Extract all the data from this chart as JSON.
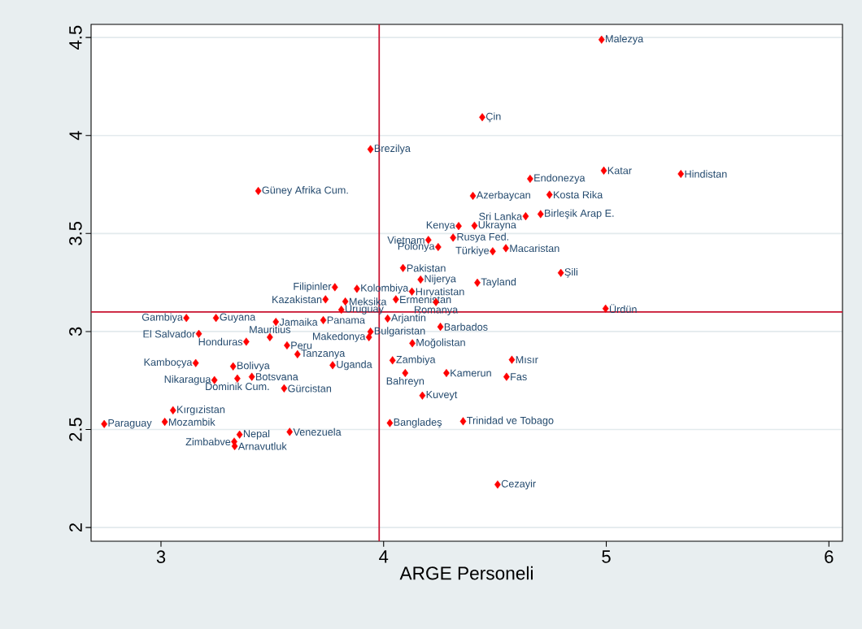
{
  "chart_data": {
    "type": "scatter",
    "xlabel": "ARGE Personeli",
    "xlim": [
      2.686,
      6.061
    ],
    "ylim": [
      1.93,
      4.567
    ],
    "xticks": [
      3,
      4,
      5,
      6
    ],
    "yticks": [
      2,
      2.5,
      3,
      3.5,
      4,
      4.5
    ],
    "grid": "y",
    "marker": "diamond",
    "ref_lines": [
      {
        "axis": "x",
        "value": 3.98,
        "color": "#c8102e"
      },
      {
        "axis": "y",
        "value": 3.1,
        "color": "#c8102e"
      }
    ],
    "series": [
      {
        "color": "#ff0000",
        "x": [
          4.979,
          4.443,
          3.941,
          4.989,
          5.335,
          4.658,
          3.437,
          4.401,
          4.745,
          4.638,
          4.705,
          4.337,
          4.408,
          4.201,
          4.312,
          4.245,
          4.49,
          4.549,
          4.087,
          4.796,
          4.166,
          4.421,
          3.781,
          3.88,
          4.127,
          3.739,
          3.828,
          4.055,
          4.235,
          3.81,
          4.997,
          3.114,
          3.247,
          4.018,
          3.516,
          3.729,
          4.255,
          3.941,
          3.934,
          3.17,
          3.489,
          3.383,
          3.566,
          4.129,
          3.613,
          4.04,
          4.576,
          3.156,
          3.324,
          3.771,
          4.097,
          4.282,
          4.552,
          3.24,
          3.343,
          3.408,
          3.553,
          4.174,
          3.054,
          2.745,
          3.017,
          4.028,
          4.357,
          3.353,
          3.578,
          3.329,
          3.331,
          4.512
        ],
        "values": [
          4.489,
          4.093,
          3.93,
          3.821,
          3.804,
          3.779,
          3.717,
          3.692,
          3.698,
          3.588,
          3.599,
          3.538,
          3.54,
          3.467,
          3.479,
          3.431,
          3.409,
          3.425,
          3.324,
          3.299,
          3.265,
          3.249,
          3.226,
          3.218,
          3.204,
          3.164,
          3.153,
          3.164,
          3.15,
          3.111,
          3.117,
          3.069,
          3.069,
          3.066,
          3.049,
          3.058,
          3.024,
          2.999,
          2.971,
          2.988,
          2.971,
          2.948,
          2.929,
          2.94,
          2.884,
          2.853,
          2.856,
          2.839,
          2.822,
          2.828,
          2.788,
          2.788,
          2.769,
          2.752,
          2.76,
          2.769,
          2.71,
          2.673,
          2.598,
          2.528,
          2.539,
          2.533,
          2.542,
          2.474,
          2.488,
          2.438,
          2.415,
          2.219
        ]
      }
    ],
    "annotations": [
      {
        "text": "Malezya",
        "x": 4.979,
        "y": 4.489
      },
      {
        "text": "Çin",
        "x": 4.443,
        "y": 4.093
      },
      {
        "text": "Brezilya",
        "x": 3.941,
        "y": 3.93
      },
      {
        "text": "Katar",
        "x": 4.989,
        "y": 3.821
      },
      {
        "text": "Hindistan",
        "x": 5.335,
        "y": 3.804
      },
      {
        "text": "Endonezya",
        "x": 4.658,
        "y": 3.779
      },
      {
        "text": "Güney Afrika Cum.",
        "x": 3.437,
        "y": 3.717
      },
      {
        "text": "Azerbaycan",
        "x": 4.401,
        "y": 3.692
      },
      {
        "text": "Kosta Rika",
        "x": 4.745,
        "y": 3.698
      },
      {
        "text": "Sri Lanka",
        "x": 4.638,
        "y": 3.588
      },
      {
        "text": "Birleşik Arap E.",
        "x": 4.705,
        "y": 3.599
      },
      {
        "text": "Kenya",
        "x": 4.337,
        "y": 3.538
      },
      {
        "text": "Ukrayna",
        "x": 4.408,
        "y": 3.54
      },
      {
        "text": "Vietnam",
        "x": 4.201,
        "y": 3.467
      },
      {
        "text": "Rusya Fed.",
        "x": 4.312,
        "y": 3.479
      },
      {
        "text": "Polonya",
        "x": 4.245,
        "y": 3.431
      },
      {
        "text": "Türkiye",
        "x": 4.49,
        "y": 3.409
      },
      {
        "text": "Macaristan",
        "x": 4.549,
        "y": 3.425
      },
      {
        "text": "Pakistan",
        "x": 4.087,
        "y": 3.324
      },
      {
        "text": "Şili",
        "x": 4.796,
        "y": 3.299
      },
      {
        "text": "Nijerya",
        "x": 4.166,
        "y": 3.265
      },
      {
        "text": "Tayland",
        "x": 4.421,
        "y": 3.249
      },
      {
        "text": "Filipinler",
        "x": 3.781,
        "y": 3.226
      },
      {
        "text": "Kolombiya",
        "x": 3.88,
        "y": 3.218
      },
      {
        "text": "Hırvatistan",
        "x": 4.127,
        "y": 3.204
      },
      {
        "text": "Kazakistan",
        "x": 3.739,
        "y": 3.164
      },
      {
        "text": "Meksika",
        "x": 3.828,
        "y": 3.153
      },
      {
        "text": "Ermenistan",
        "x": 4.055,
        "y": 3.164
      },
      {
        "text": "Romanya",
        "x": 4.235,
        "y": 3.15
      },
      {
        "text": "Uruguay",
        "x": 3.81,
        "y": 3.111
      },
      {
        "text": "Ürdün",
        "x": 4.997,
        "y": 3.117
      },
      {
        "text": "Gambiya",
        "x": 3.114,
        "y": 3.069
      },
      {
        "text": "Guyana",
        "x": 3.247,
        "y": 3.069
      },
      {
        "text": "Arjantin",
        "x": 4.018,
        "y": 3.066
      },
      {
        "text": "Jamaika",
        "x": 3.516,
        "y": 3.049
      },
      {
        "text": "Panama",
        "x": 3.729,
        "y": 3.058
      },
      {
        "text": "Barbados",
        "x": 4.255,
        "y": 3.024
      },
      {
        "text": "Bulgaristan",
        "x": 3.941,
        "y": 2.999
      },
      {
        "text": "Makedonya",
        "x": 3.934,
        "y": 2.971
      },
      {
        "text": "El Salvador",
        "x": 3.17,
        "y": 2.988
      },
      {
        "text": "Mauritius",
        "x": 3.489,
        "y": 2.971
      },
      {
        "text": "Honduras",
        "x": 3.383,
        "y": 2.948
      },
      {
        "text": "Peru",
        "x": 3.566,
        "y": 2.929
      },
      {
        "text": "Moğolistan",
        "x": 4.129,
        "y": 2.94
      },
      {
        "text": "Tanzanya",
        "x": 3.613,
        "y": 2.884
      },
      {
        "text": "Zambiya",
        "x": 4.04,
        "y": 2.853
      },
      {
        "text": "Mısır",
        "x": 4.576,
        "y": 2.856
      },
      {
        "text": "Kamboçya",
        "x": 3.156,
        "y": 2.839
      },
      {
        "text": "Bolivya",
        "x": 3.324,
        "y": 2.822
      },
      {
        "text": "Uganda",
        "x": 3.771,
        "y": 2.828
      },
      {
        "text": "Bahreyn",
        "x": 4.097,
        "y": 2.788
      },
      {
        "text": "Kamerun",
        "x": 4.282,
        "y": 2.788
      },
      {
        "text": "Fas",
        "x": 4.552,
        "y": 2.769
      },
      {
        "text": "Nikaragua",
        "x": 3.24,
        "y": 2.752
      },
      {
        "text": "Dominik Cum.",
        "x": 3.343,
        "y": 2.76
      },
      {
        "text": "Botsvana",
        "x": 3.408,
        "y": 2.769
      },
      {
        "text": "Gürcistan",
        "x": 3.553,
        "y": 2.71
      },
      {
        "text": "Kuveyt",
        "x": 4.174,
        "y": 2.673
      },
      {
        "text": "Kırgızistan",
        "x": 3.054,
        "y": 2.598
      },
      {
        "text": "Paraguay",
        "x": 2.745,
        "y": 2.528
      },
      {
        "text": "Mozambik",
        "x": 3.017,
        "y": 2.539
      },
      {
        "text": "Bangladeş",
        "x": 4.028,
        "y": 2.533
      },
      {
        "text": "Trinidad ve Tobago",
        "x": 4.357,
        "y": 2.542
      },
      {
        "text": "Nepal",
        "x": 3.353,
        "y": 2.474
      },
      {
        "text": "Venezuela",
        "x": 3.578,
        "y": 2.488
      },
      {
        "text": "Zimbabve",
        "x": 3.329,
        "y": 2.438
      },
      {
        "text": "Arnavutluk",
        "x": 3.331,
        "y": 2.415
      },
      {
        "text": "Cezayir",
        "x": 4.512,
        "y": 2.219
      }
    ]
  }
}
